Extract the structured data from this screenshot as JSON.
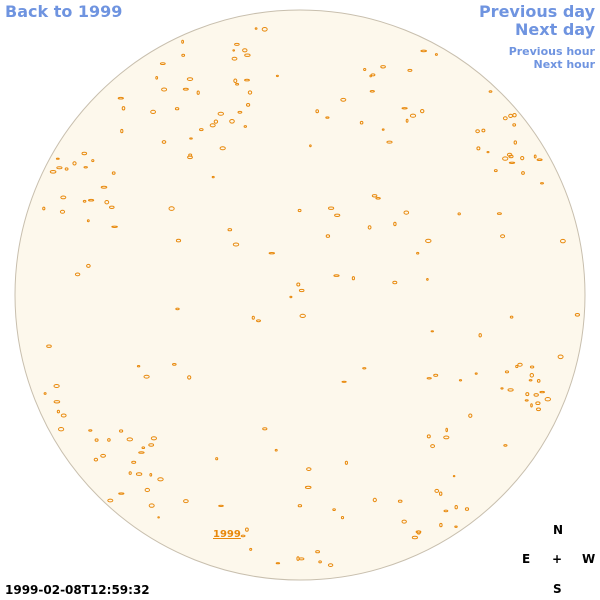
{
  "nav": {
    "back_to_year": "Back to 1999",
    "previous_day": "Previous day",
    "next_day": "Next day",
    "previous_hour": "Previous hour",
    "next_hour": "Next hour"
  },
  "disc_label": "1999",
  "timestamp": "1999-02-08T12:59:32",
  "compass": {
    "north": "N",
    "east": "E",
    "center": "+",
    "west": "W",
    "south": "S"
  }
}
